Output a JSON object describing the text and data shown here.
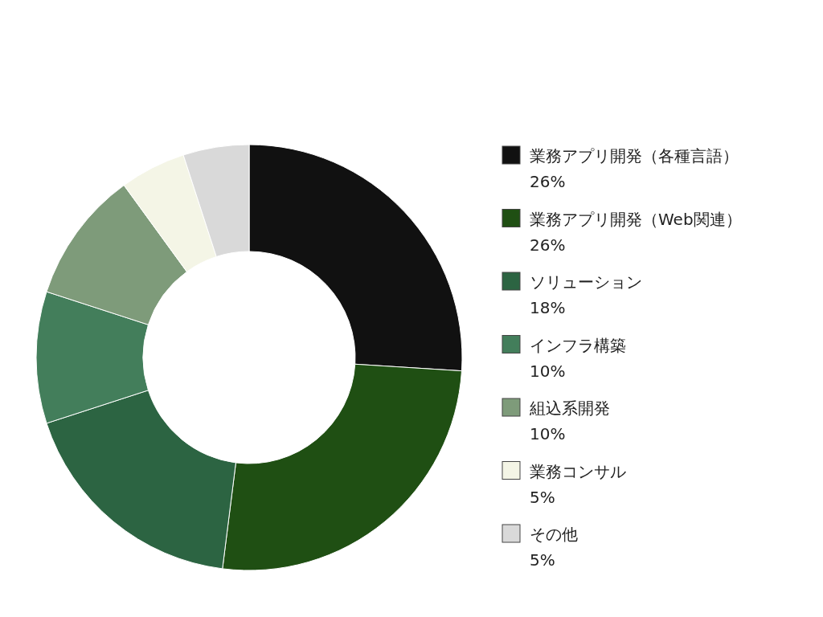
{
  "chart_data": {
    "type": "donut",
    "categories": [
      "業務アプリ開発（各種言語）",
      "業務アプリ開発（Web関連）",
      "ソリューション",
      "インフラ構築",
      "組込系開発",
      "業務コンサル",
      "その他"
    ],
    "values": [
      26,
      26,
      18,
      10,
      10,
      5,
      5
    ],
    "value_labels": [
      "26%",
      "26%",
      "18%",
      "10%",
      "10%",
      "5%",
      "5%"
    ],
    "colors": [
      "#111111",
      "#1f4f13",
      "#2c6442",
      "#437e5b",
      "#7e9b7a",
      "#f4f5e6",
      "#d9d9d9"
    ],
    "legend": "right"
  }
}
